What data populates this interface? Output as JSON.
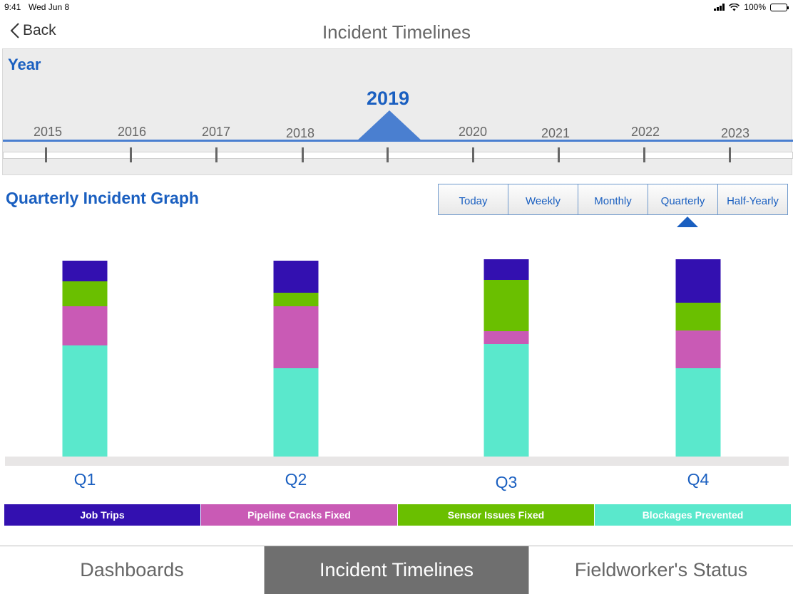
{
  "status_bar": {
    "time": "9:41",
    "date": "Wed Jun 8",
    "battery": "100%"
  },
  "nav": {
    "back_label": "Back",
    "title": "Incident Timelines"
  },
  "year_selector": {
    "heading": "Year",
    "selected": "2019",
    "years": [
      "2015",
      "2016",
      "2017",
      "2018",
      "2020",
      "2021",
      "2022",
      "2023"
    ]
  },
  "graph": {
    "title": "Quarterly Incident Graph",
    "periods": [
      "Today",
      "Weekly",
      "Monthly",
      "Quarterly",
      "Half-Yearly"
    ],
    "active_period": "Quarterly"
  },
  "chart_data": {
    "type": "bar",
    "stacked": true,
    "categories": [
      "Q1",
      "Q2",
      "Q3",
      "Q4"
    ],
    "series": [
      {
        "name": "Blockages Prevented",
        "color": "#5ae8cc",
        "values": [
          156,
          124,
          158,
          124
        ]
      },
      {
        "name": "Pipeline Cracks Fixed",
        "color": "#c95ab5",
        "values": [
          55,
          87,
          18,
          53
        ]
      },
      {
        "name": "Sensor Issues Fixed",
        "color": "#6abf00",
        "values": [
          35,
          19,
          72,
          39
        ]
      },
      {
        "name": "Job Trips",
        "color": "#3310b0",
        "values": [
          29,
          45,
          29,
          61
        ]
      }
    ],
    "legend_order": [
      "Job Trips",
      "Pipeline Cracks Fixed",
      "Sensor Issues Fixed",
      "Blockages Prevented"
    ],
    "legend_placement": "bottom",
    "grid": false
  },
  "tabs": [
    "Dashboards",
    "Incident Timelines",
    "Fieldworker's Status"
  ],
  "active_tab": "Incident Timelines"
}
